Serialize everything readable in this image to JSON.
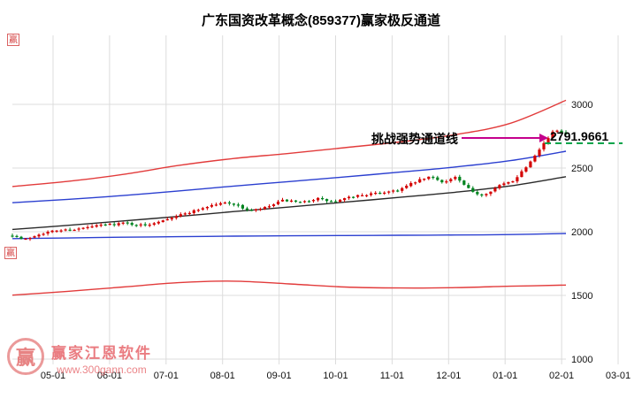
{
  "chart_data": {
    "type": "candlestick",
    "title": "广东国资改革概念(859377)赢家极反通道",
    "x_ticks": [
      "05-01",
      "06-01",
      "07-01",
      "08-01",
      "09-01",
      "10-01",
      "11-01",
      "12-01",
      "01-01",
      "02-01",
      "03-01"
    ],
    "y_ticks": [
      3000,
      2500,
      2000,
      1500,
      1000
    ],
    "ylim": [
      950,
      3150
    ],
    "grid": true,
    "legend": "none",
    "price_trend": [
      [
        0,
        1975
      ],
      [
        0.02,
        1935
      ],
      [
        0.05,
        1985
      ],
      [
        0.08,
        2010
      ],
      [
        0.12,
        2022
      ],
      [
        0.16,
        2052
      ],
      [
        0.2,
        2068
      ],
      [
        0.24,
        2048
      ],
      [
        0.27,
        2092
      ],
      [
        0.31,
        2140
      ],
      [
        0.36,
        2208
      ],
      [
        0.39,
        2232
      ],
      [
        0.43,
        2162
      ],
      [
        0.46,
        2192
      ],
      [
        0.49,
        2248
      ],
      [
        0.52,
        2226
      ],
      [
        0.55,
        2262
      ],
      [
        0.58,
        2232
      ],
      [
        0.62,
        2282
      ],
      [
        0.66,
        2302
      ],
      [
        0.7,
        2332
      ],
      [
        0.73,
        2396
      ],
      [
        0.755,
        2432
      ],
      [
        0.78,
        2388
      ],
      [
        0.8,
        2428
      ],
      [
        0.83,
        2312
      ],
      [
        0.85,
        2288
      ],
      [
        0.88,
        2362
      ],
      [
        0.905,
        2402
      ],
      [
        0.93,
        2520
      ],
      [
        0.95,
        2642
      ],
      [
        0.965,
        2722
      ],
      [
        0.98,
        2800
      ],
      [
        0.99,
        2792
      ],
      [
        1,
        2766
      ]
    ],
    "channel_lines": [
      {
        "name": "upper-outer-red",
        "color": "#e23b3b",
        "points": [
          2355,
          2395,
          2450,
          2520,
          2575,
          2615,
          2660,
          2705,
          2762,
          2852,
          3032
        ]
      },
      {
        "name": "upper-inner-blue",
        "color": "#2b3fd0",
        "points": [
          2228,
          2254,
          2284,
          2320,
          2358,
          2394,
          2430,
          2468,
          2508,
          2558,
          2632
        ]
      },
      {
        "name": "middle-trend-black",
        "color": "#2a2a2a",
        "points": [
          2018,
          2050,
          2085,
          2120,
          2158,
          2194,
          2232,
          2270,
          2310,
          2360,
          2432
        ]
      },
      {
        "name": "lower-inner-blue",
        "color": "#2b3fd0",
        "points": [
          1946,
          1951,
          1957,
          1961,
          1965,
          1968,
          1970,
          1972,
          1974,
          1978,
          1986
        ]
      },
      {
        "name": "lower-outer-red",
        "color": "#e23b3b",
        "points": [
          1502,
          1532,
          1566,
          1600,
          1612,
          1590,
          1566,
          1558,
          1561,
          1572,
          1581
        ]
      }
    ],
    "marker_line": {
      "price": 2791.9661,
      "color": "#00a44a",
      "style": "dashed"
    },
    "candle_count": 126,
    "colors": {
      "up": "#d40000",
      "down": "#00831f"
    }
  },
  "annotation": {
    "text": "挑战强势通道线",
    "price_label": "2791.9661",
    "arrow_color": "#c4008c"
  },
  "watermark": {
    "brand": "赢家江恩软件",
    "url": "www.300gann.com",
    "logo_char": "赢",
    "stamp_glyph": "赢"
  }
}
